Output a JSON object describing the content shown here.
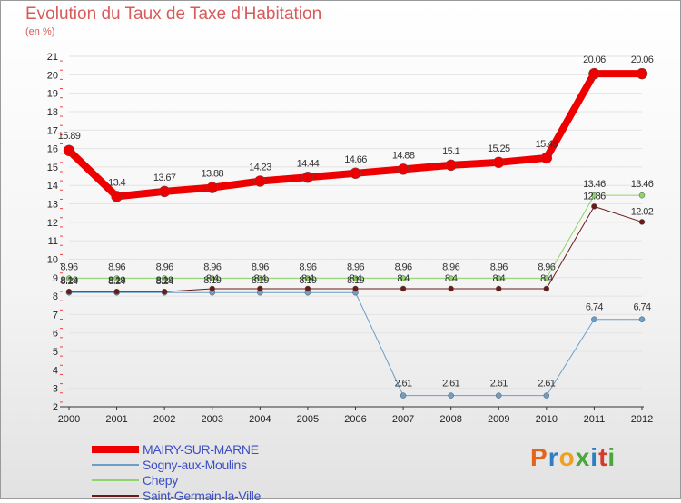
{
  "title": "Evolution du Taux de Taxe d'Habitation",
  "subtitle": "(en %)",
  "logo": {
    "text": "Proxiti",
    "colors": [
      "#e8631a",
      "#2d7fc1",
      "#f0a020",
      "#4aa83a",
      "#2d7fc1",
      "#d83a2a",
      "#4aa83a"
    ]
  },
  "chart_data": {
    "type": "line",
    "x": [
      "2000",
      "2001",
      "2002",
      "2003",
      "2004",
      "2005",
      "2006",
      "2007",
      "2008",
      "2009",
      "2010",
      "2011",
      "2012"
    ],
    "ylim": [
      2,
      21
    ],
    "yticks": [
      2,
      3,
      4,
      5,
      6,
      7,
      8,
      9,
      10,
      11,
      12,
      13,
      14,
      15,
      16,
      17,
      18,
      19,
      20,
      21
    ],
    "grid": true,
    "legend_position": "bottom-left",
    "series": [
      {
        "name": "MAIRY-SUR-MARNE",
        "color": "#ee0000",
        "width": 8,
        "values": [
          15.89,
          13.4,
          13.67,
          13.88,
          14.23,
          14.44,
          14.66,
          14.88,
          15.1,
          15.25,
          15.49,
          20.06,
          20.06
        ],
        "labels": [
          "15.89",
          "13.4",
          "13.67",
          "13.88",
          "14.23",
          "14.44",
          "14.66",
          "14.88",
          "15.1",
          "15.25",
          "15.49",
          "20.06",
          "20.06"
        ]
      },
      {
        "name": "Sogny-aux-Moulins",
        "color": "#6b9ec8",
        "width": 1,
        "values": [
          8.19,
          8.19,
          8.19,
          8.19,
          8.19,
          8.19,
          8.19,
          2.61,
          2.61,
          2.61,
          2.61,
          6.74,
          6.74
        ],
        "labels": [
          "8.19",
          "8.19",
          "8.19",
          "8.19",
          "8.19",
          "8.19",
          "8.19",
          "2.61",
          "2.61",
          "2.61",
          "2.61",
          "6.74",
          "6.74"
        ]
      },
      {
        "name": "Chepy",
        "color": "#8ed46a",
        "width": 1,
        "values": [
          8.96,
          8.96,
          8.96,
          8.96,
          8.96,
          8.96,
          8.96,
          8.96,
          8.96,
          8.96,
          8.96,
          13.46,
          13.46
        ],
        "labels": [
          "8.96",
          "8.96",
          "8.96",
          "8.96",
          "8.96",
          "8.96",
          "8.96",
          "8.96",
          "8.96",
          "8.96",
          "8.96",
          "13.46",
          "13.46"
        ]
      },
      {
        "name": "Saint-Germain-la-Ville",
        "color": "#6b1a1a",
        "width": 1,
        "values": [
          8.24,
          8.24,
          8.24,
          8.4,
          8.4,
          8.4,
          8.4,
          8.4,
          8.4,
          8.4,
          8.4,
          12.86,
          12.02
        ],
        "labels": [
          "8.24",
          "8.24",
          "8.24",
          "8.4",
          "8.4",
          "8.4",
          "8.4",
          "8.4",
          "8.4",
          "8.4",
          "8.4",
          "12.86",
          "12.02"
        ]
      }
    ]
  }
}
